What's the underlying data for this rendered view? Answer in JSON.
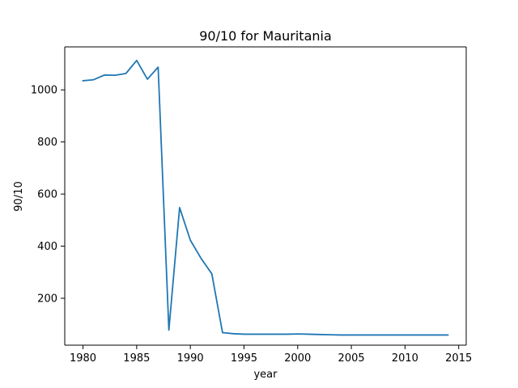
{
  "chart_data": {
    "type": "line",
    "title": "90/10 for Mauritania",
    "xlabel": "year",
    "ylabel": "90/10",
    "xlim": [
      1978.3,
      2015.7
    ],
    "ylim": [
      20,
      1165
    ],
    "xticks": [
      1980,
      1985,
      1990,
      1995,
      2000,
      2005,
      2010,
      2015
    ],
    "yticks": [
      200,
      400,
      600,
      800,
      1000
    ],
    "grid": false,
    "legend": "none",
    "series_color": "#1f77b4",
    "x": [
      1980,
      1981,
      1982,
      1983,
      1984,
      1985,
      1986,
      1987,
      1988,
      1989,
      1990,
      1991,
      1992,
      1993,
      1994,
      1995,
      1996,
      1997,
      1998,
      1999,
      2000,
      2001,
      2002,
      2003,
      2004,
      2005,
      2006,
      2007,
      2008,
      2009,
      2010,
      2011,
      2012,
      2013,
      2014
    ],
    "y": [
      1035,
      1039,
      1057,
      1056,
      1063,
      1113,
      1041,
      1087,
      78,
      548,
      423,
      353,
      294,
      68,
      64,
      62,
      62,
      62,
      62,
      62,
      63,
      62,
      61,
      60,
      59,
      59,
      59,
      59,
      59,
      59,
      59,
      59,
      59,
      59,
      59
    ]
  }
}
